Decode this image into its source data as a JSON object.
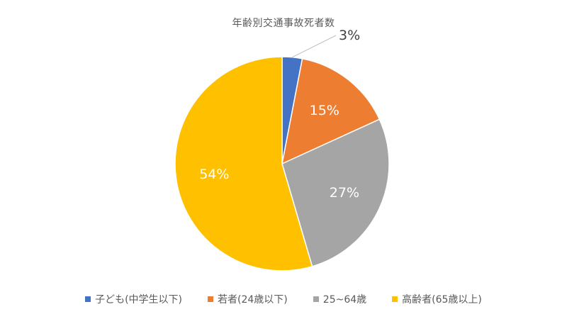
{
  "chart_data": {
    "type": "pie",
    "title": "年齢別交通事故死者数",
    "categories": [
      "子ども(中学生以下)",
      "若者(24歳以下)",
      "25~64歳",
      "高齢者(65歳以上)"
    ],
    "values": [
      3,
      15,
      27,
      54
    ],
    "data_labels": [
      "3%",
      "15%",
      "27%",
      "54%"
    ],
    "colors": [
      "#4472C4",
      "#ED7D31",
      "#A5A5A5",
      "#FFC000"
    ],
    "legend_position": "bottom",
    "start_angle": "12 o'clock",
    "direction": "clockwise"
  }
}
